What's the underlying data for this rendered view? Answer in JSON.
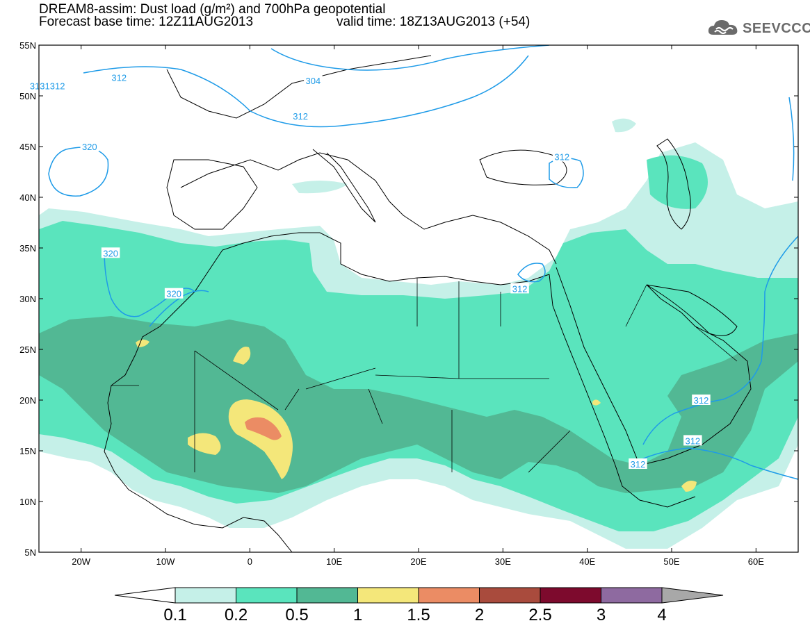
{
  "header": {
    "title_line1": "DREAM8-assim: Dust load (g/m²) and 700hPa geopotential",
    "base_time": "Forecast base time: 12Z11AUG2013",
    "valid_time": "valid time: 18Z13AUG2013 (+54)"
  },
  "logo": {
    "text": "SEEVCCC",
    "icon": "cloud-icon"
  },
  "map": {
    "lon_range": [
      -25,
      65
    ],
    "lat_range": [
      5,
      55
    ],
    "lat_labels": [
      {
        "lat": 55,
        "label": "55N"
      },
      {
        "lat": 50,
        "label": "50N"
      },
      {
        "lat": 45,
        "label": "45N"
      },
      {
        "lat": 40,
        "label": "40N"
      },
      {
        "lat": 35,
        "label": "35N"
      },
      {
        "lat": 30,
        "label": "30N"
      },
      {
        "lat": 25,
        "label": "25N"
      },
      {
        "lat": 20,
        "label": "20N"
      },
      {
        "lat": 15,
        "label": "15N"
      },
      {
        "lat": 10,
        "label": "10N"
      },
      {
        "lat": 5,
        "label": "5N"
      }
    ],
    "lon_labels": [
      {
        "lon": -20,
        "label": "20W"
      },
      {
        "lon": -10,
        "label": "10W"
      },
      {
        "lon": 0,
        "label": "0"
      },
      {
        "lon": 10,
        "label": "10E"
      },
      {
        "lon": 20,
        "label": "20E"
      },
      {
        "lon": 30,
        "label": "30E"
      },
      {
        "lon": 40,
        "label": "40E"
      },
      {
        "lon": 50,
        "label": "50E"
      },
      {
        "lon": 60,
        "label": "60E"
      }
    ],
    "contour_labels": [
      {
        "text": "3131312",
        "lon": -24.0,
        "lat": 51.0
      },
      {
        "text": "312",
        "lon": -15.5,
        "lat": 51.8
      },
      {
        "text": "304",
        "lon": 7.5,
        "lat": 51.5
      },
      {
        "text": "312",
        "lon": 6.0,
        "lat": 48.0
      },
      {
        "text": "320",
        "lon": -19.0,
        "lat": 45.0
      },
      {
        "text": "312",
        "lon": 37.0,
        "lat": 44.0
      },
      {
        "text": "320",
        "lon": -16.5,
        "lat": 34.5
      },
      {
        "text": "320",
        "lon": -9.0,
        "lat": 30.5
      },
      {
        "text": "312",
        "lon": 32.0,
        "lat": 31.0
      },
      {
        "text": "312",
        "lon": 53.5,
        "lat": 20.0
      },
      {
        "text": "312",
        "lon": 52.5,
        "lat": 16.0
      },
      {
        "text": "312",
        "lon": 46.0,
        "lat": 13.7
      }
    ]
  },
  "colorbar": {
    "colors": [
      "#c5f0e8",
      "#5ae4bd",
      "#52b894",
      "#f4e77a",
      "#eb8c64",
      "#a94b3d",
      "#7d0a2d",
      "#8e6aa0"
    ],
    "under_color": "#ffffff",
    "over_color": "#a8a8a8",
    "ticks": [
      "0.1",
      "0.2",
      "0.5",
      "1",
      "1.5",
      "2",
      "2.5",
      "3",
      "4"
    ]
  },
  "colors": {
    "contour": "#1e9be8",
    "coast": "#000000"
  }
}
